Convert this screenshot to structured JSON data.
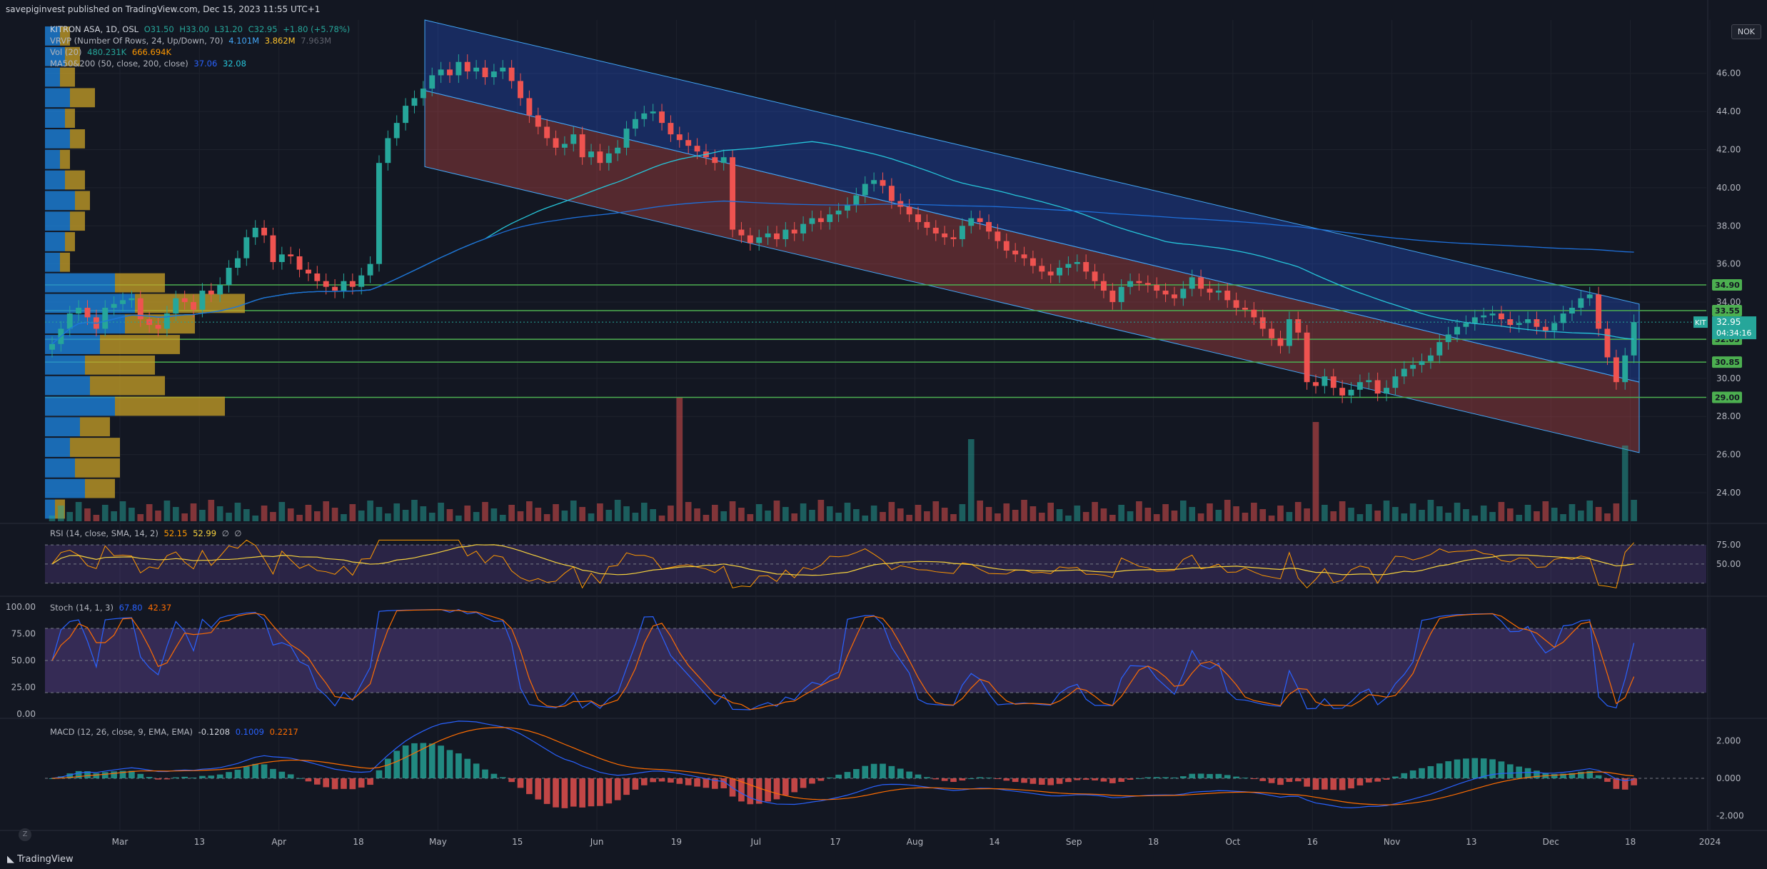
{
  "header": {
    "published": "savepiginvest published on TradingView.com, Dec 15, 2023 11:55 UTC+1"
  },
  "legends": {
    "main": {
      "title": "KITRON ASA, 1D, OSL",
      "o": "O31.50",
      "h": "H33.00",
      "l": "L31.20",
      "c": "C32.95",
      "chg": "+1.80 (+5.78%)"
    },
    "vrvp": {
      "title": "VRVP (Number Of Rows, 24, Up/Down, 70)",
      "v1": "4.101M",
      "v2": "3.862M",
      "v3": "7.963M"
    },
    "vol": {
      "title": "Vol (20)",
      "v1": "480.231K",
      "v2": "666.694K"
    },
    "ma": {
      "title": "MA50&200 (50, close, 200, close)",
      "v1": "37.06",
      "v2": "32.08"
    },
    "rsi": {
      "title": "RSI (14, close, SMA, 14, 2)",
      "v1": "52.15",
      "v2": "52.99",
      "v3": "∅",
      "v4": "∅"
    },
    "stoch": {
      "title": "Stoch (14, 1, 3)",
      "v1": "67.80",
      "v2": "42.37"
    },
    "macd": {
      "title": "MACD (12, 26, close, 9, EMA, EMA)",
      "v1": "-0.1208",
      "v2": "0.1009",
      "v3": "0.2217"
    }
  },
  "currency": "NOK",
  "footer": "TradingView",
  "colors": {
    "bg": "#131722",
    "grid": "#1e222d",
    "up": "#26a69a",
    "down": "#ef5350",
    "hline": "#4caf50",
    "ma50": "#26c6da",
    "ma200": "#1e6fd9",
    "vpUp": "#1e88e5",
    "vpDown": "#c9a227",
    "rsiLine": "#ff9800",
    "rsiSma": "#f7d23e",
    "stochK": "#2962ff",
    "stochD": "#ff6d00",
    "band": "#7e57c2"
  },
  "chart_data": {
    "type": "candlestick",
    "symbol": "KITRON ASA",
    "interval": "1D",
    "exchange": "OSL",
    "currency": "NOK",
    "price_axis": {
      "ticks": [
        "46.00",
        "44.00",
        "42.00",
        "40.00",
        "38.00",
        "36.00",
        "34.00",
        "32.00",
        "30.00",
        "28.00",
        "26.00",
        "24.00"
      ],
      "range": [
        22.5,
        48.8
      ]
    },
    "x_axis": {
      "ticks": [
        "Mar",
        "13",
        "Apr",
        "18",
        "May",
        "15",
        "Jun",
        "19",
        "Jul",
        "17",
        "Aug",
        "14",
        "Sep",
        "18",
        "Oct",
        "16",
        "Nov",
        "13",
        "Dec",
        "18",
        "2024"
      ]
    },
    "horizontal_levels": [
      "34.90",
      "33.55",
      "32.05",
      "30.85",
      "29.00"
    ],
    "last_price": {
      "symbol": "KIT",
      "price": "32.95",
      "countdown": "04:34:16"
    },
    "channel": {
      "upper_top": [
        [
          "May 1",
          48.8
        ],
        [
          "Dec 14",
          33.9
        ]
      ],
      "mid": [
        [
          "May 1",
          45.1
        ],
        [
          "Dec 14",
          29.8
        ]
      ],
      "lower": [
        [
          "May 1",
          41.1
        ],
        [
          "Dec 14",
          26.1
        ]
      ]
    },
    "closes": [
      31.8,
      32.6,
      33.4,
      33.7,
      33.2,
      32.6,
      33.7,
      33.9,
      34.1,
      34.2,
      33.1,
      32.8,
      32.6,
      33.4,
      34.2,
      34.0,
      33.6,
      34.6,
      34.4,
      34.9,
      35.8,
      36.3,
      37.4,
      37.9,
      37.5,
      36.1,
      36.5,
      36.4,
      35.7,
      35.5,
      35.1,
      34.8,
      34.6,
      35.1,
      34.8,
      35.4,
      36.0,
      41.3,
      42.6,
      43.4,
      44.3,
      44.7,
      45.2,
      45.9,
      46.2,
      45.9,
      46.6,
      46.1,
      46.3,
      45.8,
      46.1,
      46.3,
      45.6,
      44.7,
      43.8,
      43.2,
      42.6,
      42.1,
      42.3,
      42.8,
      41.6,
      41.9,
      41.3,
      41.8,
      42.1,
      43.1,
      43.6,
      43.9,
      44.0,
      43.4,
      42.8,
      42.5,
      42.2,
      41.9,
      41.6,
      41.3,
      41.6,
      37.8,
      37.5,
      37.1,
      37.4,
      37.6,
      37.3,
      37.8,
      37.6,
      38.1,
      38.4,
      38.2,
      38.6,
      38.8,
      39.1,
      39.6,
      40.2,
      40.4,
      40.1,
      39.3,
      39.0,
      38.6,
      38.2,
      37.9,
      37.6,
      37.4,
      37.3,
      38.0,
      38.4,
      38.2,
      37.7,
      37.2,
      36.7,
      36.5,
      36.3,
      35.9,
      35.6,
      35.4,
      35.8,
      36.0,
      36.1,
      35.6,
      35.1,
      34.6,
      34.0,
      34.8,
      35.1,
      35.0,
      34.9,
      34.6,
      34.4,
      34.2,
      34.7,
      35.3,
      34.7,
      34.5,
      34.6,
      34.1,
      33.7,
      33.6,
      33.2,
      32.6,
      32.1,
      31.7,
      33.1,
      32.4,
      29.8,
      29.6,
      30.1,
      29.5,
      29.1,
      29.4,
      29.8,
      29.9,
      29.2,
      29.5,
      30.1,
      30.5,
      30.7,
      30.9,
      31.2,
      31.9,
      32.3,
      32.7,
      32.9,
      33.2,
      33.3,
      33.4,
      33.1,
      32.8,
      32.9,
      33.1,
      32.7,
      32.5,
      32.9,
      33.4,
      33.7,
      34.2,
      34.4,
      32.6,
      31.1,
      29.8,
      31.2,
      32.95
    ],
    "moving_averages": [
      {
        "name": "MA50",
        "value": "37.06"
      },
      {
        "name": "MA200",
        "value": "32.08"
      }
    ],
    "volume_profile": {
      "rows_price_desc_note": "24 rows, up/down split",
      "up": [
        3,
        4,
        3,
        5,
        4,
        5,
        3,
        4,
        6,
        5,
        4,
        3,
        14,
        18,
        16,
        11,
        8,
        9,
        14,
        7,
        5,
        6,
        8,
        2
      ],
      "down": [
        2,
        3,
        3,
        5,
        2,
        3,
        2,
        4,
        3,
        3,
        2,
        2,
        10,
        22,
        14,
        16,
        14,
        15,
        22,
        6,
        10,
        9,
        6,
        2
      ]
    },
    "rsi": {
      "levels": [
        "75.00",
        "50.00",
        "25.00"
      ],
      "ticks": [
        "75.00",
        "50.00"
      ],
      "value": "52.15",
      "sma": "52.99"
    },
    "stoch": {
      "ticks": [
        "100.00",
        "75.00",
        "50.00",
        "25.00",
        "0.00"
      ],
      "k": "67.80",
      "d": "42.37"
    },
    "macd": {
      "ticks": [
        "2.000",
        "0.000",
        "-2.000"
      ],
      "hist": "-0.1208",
      "macd": "0.1009",
      "signal": "0.2217"
    }
  }
}
